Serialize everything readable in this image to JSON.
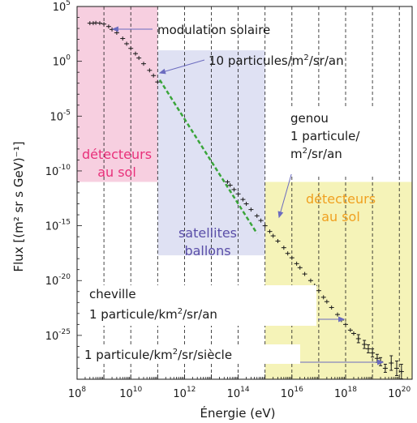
{
  "chart_data": {
    "type": "scatter",
    "title": "",
    "xlabel": "Énergie (eV)",
    "ylabel": "Flux [(m² sr s GeV)⁻¹]",
    "x_scale": "log",
    "y_scale": "log",
    "xlim": [
      100000000.0,
      3e+20
    ],
    "ylim": [
      1e-29,
      100000.0
    ],
    "grid": "vertical dashed lines at each decade",
    "x_ticks": [
      {
        "base": "10",
        "exp": "8",
        "value": 100000000.0
      },
      {
        "base": "10",
        "exp": "10",
        "value": 10000000000.0
      },
      {
        "base": "10",
        "exp": "12",
        "value": 1000000000000.0
      },
      {
        "base": "10",
        "exp": "14",
        "value": 100000000000000.0
      },
      {
        "base": "10",
        "exp": "16",
        "value": 1e+16
      },
      {
        "base": "10",
        "exp": "18",
        "value": 1e+18
      },
      {
        "base": "10",
        "exp": "20",
        "value": 1e+20
      }
    ],
    "y_ticks": [
      {
        "base": "10",
        "exp": "5",
        "value": 100000.0
      },
      {
        "base": "10",
        "exp": "0",
        "value": 1
      },
      {
        "base": "10",
        "exp": "-5",
        "value": 1e-05
      },
      {
        "base": "10",
        "exp": "-10",
        "value": 1e-10
      },
      {
        "base": "10",
        "exp": "-15",
        "value": 1e-15
      },
      {
        "base": "10",
        "exp": "-20",
        "value": 1e-20
      },
      {
        "base": "10",
        "exp": "-25",
        "value": 1e-25
      }
    ],
    "regions": [
      {
        "label": [
          "détecteurs",
          "au sol"
        ],
        "x_range": [
          100000000.0,
          100000000000.0
        ],
        "y_range": [
          1e-11,
          100000.0
        ],
        "color": "#f7cfe0",
        "text_color": "#e8307a"
      },
      {
        "label": [
          "satellites",
          "ballons"
        ],
        "x_range": [
          100000000000.0,
          1000000000000000.0
        ],
        "y_range": [
          2e-18,
          10.0
        ],
        "color": "#dfe1f3",
        "text_color": "#5a4ea8"
      },
      {
        "label": [
          "détecteurs",
          "au sol"
        ],
        "x_range": [
          1000000000000000.0,
          3e+20
        ],
        "y_range": [
          1e-29,
          1e-11
        ],
        "color": "#f5f3b8",
        "text_color": "#f0a020"
      }
    ],
    "series": [
      {
        "marker": "cross",
        "color": "#1a1a1a",
        "points": [
          [
            300000000.0,
            3000.0
          ],
          [
            400000000.0,
            3000.0
          ],
          [
            500000000.0,
            3200.0
          ],
          [
            700000000.0,
            3000.0
          ],
          [
            1000000000.0,
            2500.0
          ],
          [
            1500000000.0,
            1500.0
          ],
          [
            2000000000.0,
            800.0
          ],
          [
            3000000000.0,
            400.0
          ],
          [
            5000000000.0,
            120.0
          ],
          [
            7000000000.0,
            40.0
          ],
          [
            10000000000.0,
            15.0
          ],
          [
            15000000000.0,
            5
          ],
          [
            20000000000.0,
            2
          ],
          [
            30000000000.0,
            0.6
          ],
          [
            50000000000.0,
            0.15
          ],
          [
            70000000000.0,
            0.05
          ],
          [
            100000000000.0,
            0.013
          ],
          [
            40000000000000.0,
            1e-11
          ],
          [
            50000000000000.0,
            5e-12
          ],
          [
            70000000000000.0,
            2e-12
          ],
          [
            100000000000000.0,
            8e-13
          ],
          [
            150000000000000.0,
            2.5e-13
          ],
          [
            200000000000000.0,
            1e-13
          ],
          [
            300000000000000.0,
            3e-14
          ],
          [
            500000000000000.0,
            8e-15
          ],
          [
            700000000000000.0,
            3e-15
          ],
          [
            1000000000000000.0,
            1e-15
          ],
          [
            1500000000000000.0,
            3e-16
          ],
          [
            2000000000000000.0,
            1.2e-16
          ],
          [
            3000000000000000.0,
            4e-17
          ],
          [
            5000000000000000.0,
            1e-17
          ],
          [
            7000000000000000.0,
            3e-18
          ],
          [
            1e+16,
            1.2e-18
          ],
          [
            1.5e+16,
            3.5e-19
          ],
          [
            2e+16,
            1.5e-19
          ],
          [
            3e+16,
            4e-20
          ],
          [
            5e+16,
            1e-20
          ],
          [
            7e+16,
            3.5e-21
          ],
          [
            1e+17,
            1.2e-21
          ],
          [
            1.5e+17,
            3e-22
          ],
          [
            2e+17,
            1.2e-22
          ],
          [
            3e+17,
            3.5e-23
          ],
          [
            5e+17,
            8e-24
          ],
          [
            7e+17,
            2.5e-24
          ],
          [
            1e+18,
            1e-24
          ],
          [
            1.5e+18,
            3e-25
          ],
          [
            2e+18,
            1.5e-25
          ],
          [
            3e+18,
            5e-26
          ],
          [
            5e+18,
            1.5e-26
          ],
          [
            7e+18,
            6e-27
          ],
          [
            1e+19,
            2.5e-27
          ],
          [
            1.5e+19,
            8e-28
          ],
          [
            2e+19,
            4e-28
          ],
          [
            3e+19,
            1e-28
          ],
          [
            5e+19,
            3e-28
          ],
          [
            8e+19,
            1e-28
          ],
          [
            1.2e+20,
            5e-29
          ]
        ]
      },
      {
        "marker": "dashed-line",
        "color": "#3aa53a",
        "points": [
          [
            120000000000.0,
            0.02
          ],
          [
            500000000000000.0,
            2e-16
          ]
        ]
      }
    ],
    "annotations": [
      {
        "text": "modulation solaire",
        "sup": "",
        "x": 360000000.0,
        "y": 9200.0
      },
      {
        "text": "10 particules/m2/sr/an",
        "sup": "",
        "x": 120000000000.0,
        "y": 32.0
      }
    ],
    "text_blocks": [
      {
        "id": "genou",
        "lines": [
          "genou",
          "1 particule/",
          "m2/sr/an"
        ]
      },
      {
        "id": "cheville",
        "lines": [
          "cheville",
          "1 particule/km2/sr/an"
        ]
      },
      {
        "id": "siecle",
        "lines": [
          "1 particule/km2/sr/siècle"
        ]
      }
    ]
  }
}
